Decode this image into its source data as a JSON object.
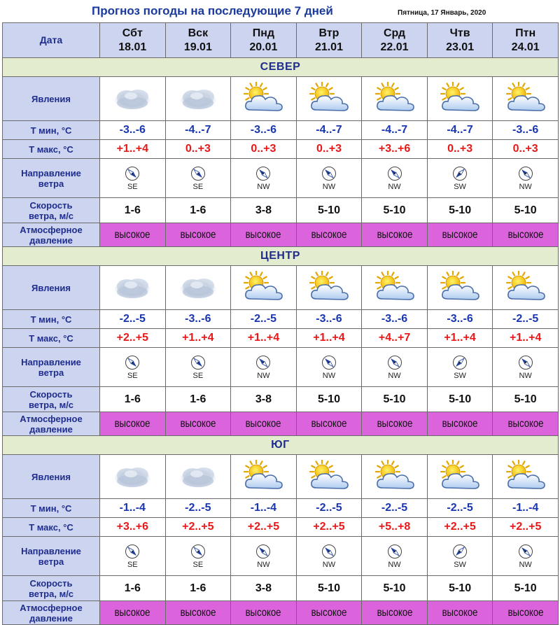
{
  "header": {
    "title": "Прогноз погоды на последующие 7 дней",
    "date": "Пятница, 17 Январь, 2020"
  },
  "labels": {
    "date": "Дата",
    "phenomena": "Явления",
    "tmin": "Т мин, °С",
    "tmax": "Т макс, °С",
    "wind_dir_1": "Направление",
    "wind_dir_2": "ветра",
    "wind_speed_1": "Скорость",
    "wind_speed_2": "ветра, м/с",
    "pressure_1": "Атмосферное",
    "pressure_2": "давление"
  },
  "days": [
    {
      "dow": "Сбт",
      "date": "18.01"
    },
    {
      "dow": "Вск",
      "date": "19.01"
    },
    {
      "dow": "Пнд",
      "date": "20.01"
    },
    {
      "dow": "Втр",
      "date": "21.01"
    },
    {
      "dow": "Срд",
      "date": "22.01"
    },
    {
      "dow": "Чтв",
      "date": "23.01"
    },
    {
      "dow": "Птн",
      "date": "24.01"
    }
  ],
  "regions": [
    {
      "name": "СЕВЕР",
      "icons": [
        "overcast-icon",
        "overcast-icon",
        "partly-cloudy-icon",
        "partly-cloudy-icon",
        "partly-cloudy-icon",
        "partly-cloudy-icon",
        "partly-cloudy-icon"
      ],
      "tmin": [
        "-3..-6",
        "-4..-7",
        "-3..-6",
        "-4..-7",
        "-4..-7",
        "-4..-7",
        "-3..-6"
      ],
      "tmax": [
        "+1..+4",
        "0..+3",
        "0..+3",
        "0..+3",
        "+3..+6",
        "0..+3",
        "0..+3"
      ],
      "wind_dir": [
        "SE",
        "SE",
        "NW",
        "NW",
        "NW",
        "SW",
        "NW"
      ],
      "wind_speed": [
        "1-6",
        "1-6",
        "3-8",
        "5-10",
        "5-10",
        "5-10",
        "5-10"
      ],
      "pressure": [
        "высокое",
        "высокое",
        "высокое",
        "высокое",
        "высокое",
        "высокое",
        "высокое"
      ]
    },
    {
      "name": "ЦЕНТР",
      "icons": [
        "overcast-icon",
        "overcast-icon",
        "partly-cloudy-icon",
        "partly-cloudy-icon",
        "partly-cloudy-icon",
        "partly-cloudy-icon",
        "partly-cloudy-icon"
      ],
      "tmin": [
        "-2..-5",
        "-3..-6",
        "-2..-5",
        "-3..-6",
        "-3..-6",
        "-3..-6",
        "-2..-5"
      ],
      "tmax": [
        "+2..+5",
        "+1..+4",
        "+1..+4",
        "+1..+4",
        "+4..+7",
        "+1..+4",
        "+1..+4"
      ],
      "wind_dir": [
        "SE",
        "SE",
        "NW",
        "NW",
        "NW",
        "SW",
        "NW"
      ],
      "wind_speed": [
        "1-6",
        "1-6",
        "3-8",
        "5-10",
        "5-10",
        "5-10",
        "5-10"
      ],
      "pressure": [
        "высокое",
        "высокое",
        "высокое",
        "высокое",
        "высокое",
        "высокое",
        "высокое"
      ]
    },
    {
      "name": "ЮГ",
      "icons": [
        "overcast-icon",
        "overcast-icon",
        "partly-cloudy-icon",
        "partly-cloudy-icon",
        "partly-cloudy-icon",
        "partly-cloudy-icon",
        "partly-cloudy-icon"
      ],
      "tmin": [
        "-1..-4",
        "-2..-5",
        "-1..-4",
        "-2..-5",
        "-2..-5",
        "-2..-5",
        "-1..-4"
      ],
      "tmax": [
        "+3..+6",
        "+2..+5",
        "+2..+5",
        "+2..+5",
        "+5..+8",
        "+2..+5",
        "+2..+5"
      ],
      "wind_dir": [
        "SE",
        "SE",
        "NW",
        "NW",
        "NW",
        "SW",
        "NW"
      ],
      "wind_speed": [
        "1-6",
        "1-6",
        "3-8",
        "5-10",
        "5-10",
        "5-10",
        "5-10"
      ],
      "pressure": [
        "высокое",
        "высокое",
        "высокое",
        "высокое",
        "высокое",
        "высокое",
        "высокое"
      ]
    }
  ],
  "colors": {
    "label_bg": "#ccd4f0",
    "region_bg": "#e4ecd0",
    "pressure_bg": "#db63db",
    "tmin": "#1836b0",
    "tmax": "#e81818",
    "title": "#1a3a9c"
  }
}
